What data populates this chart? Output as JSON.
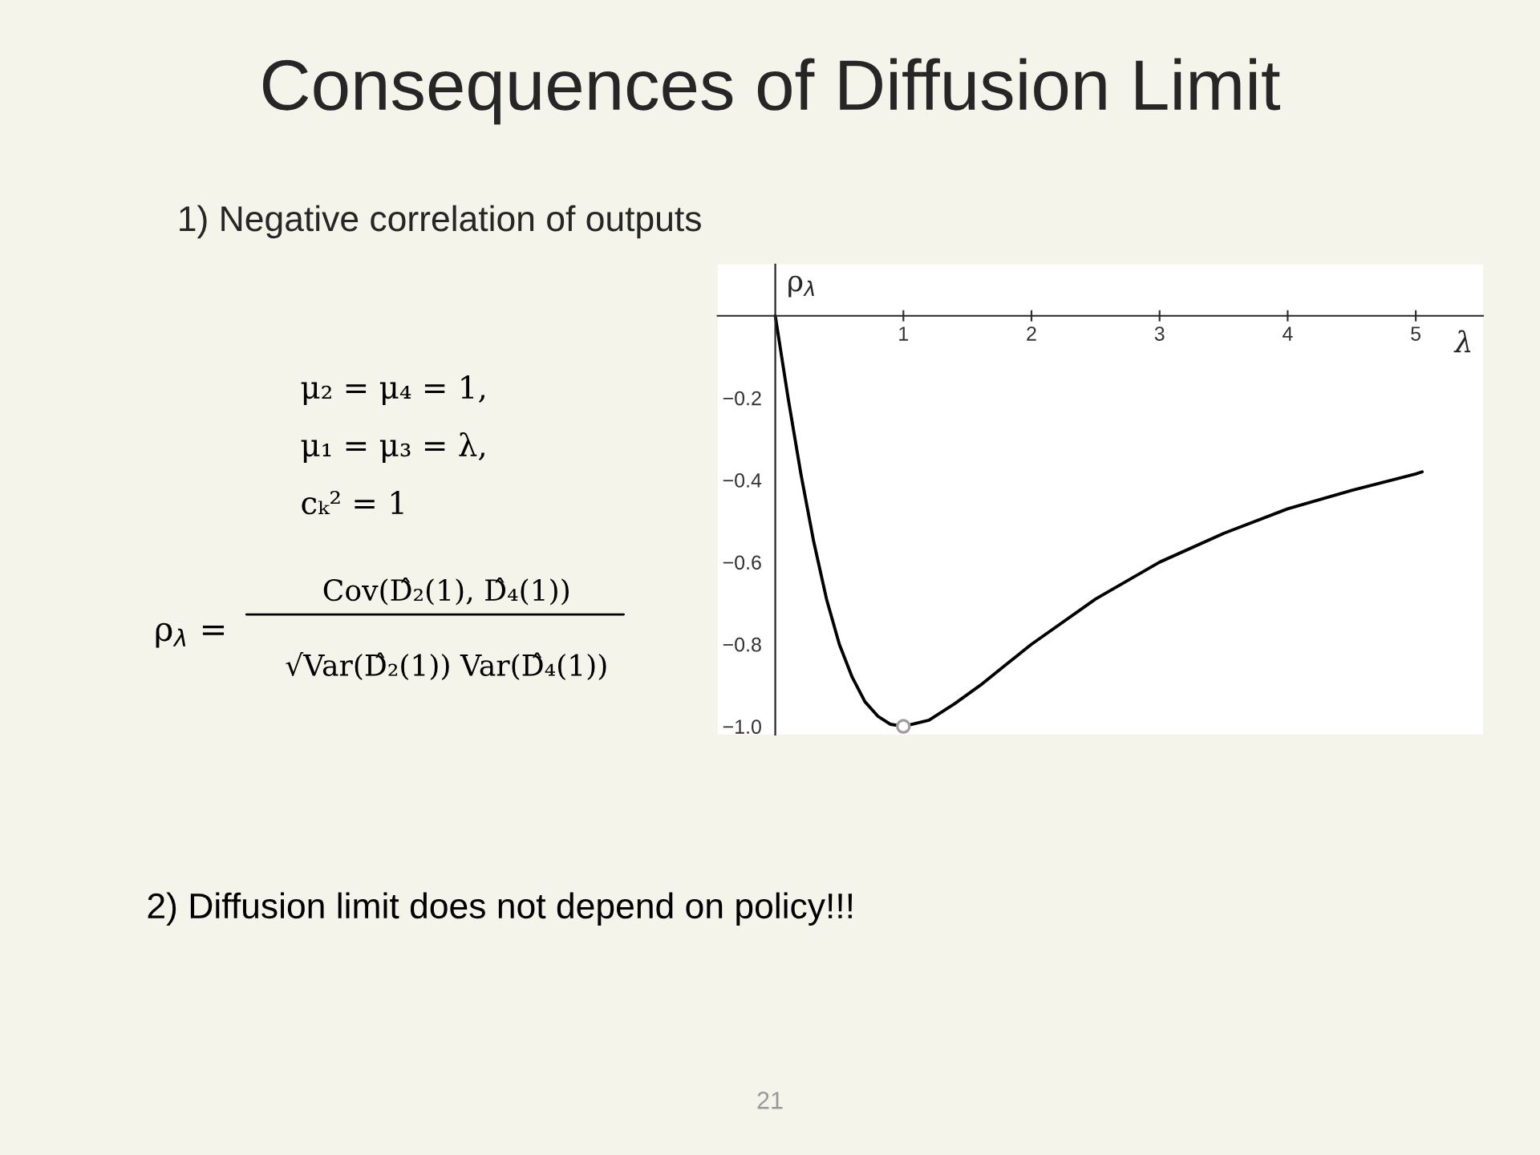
{
  "chart_data": {
    "type": "line",
    "title": "Consequences of Diffusion Limit",
    "subtitle": "1) Negative correlation of outputs",
    "xlabel": "λ",
    "ylabel": "ρ$_{λ}$",
    "annotations": [
      "μ₂ = μ₄ = 1,",
      "μ₁ = μ₃ = λ,",
      "cₖ² = 1",
      "ρ$_{λ}$ =",
      "Cov(D̂₂(1), D̂₄(1))",
      "√Var(D̂₂(1)) Var(D̂₄(1))",
      "2) Diffusion limit does not depend on policy!!!",
      "21"
    ],
    "xlim": [
      -0.45,
      5.525
    ],
    "ylim": [
      -1.02,
      0.125
    ],
    "xticks": [
      1,
      2,
      3,
      4,
      5
    ],
    "yticks": [
      {
        "value": -0.2,
        "label": "−0.2"
      },
      {
        "value": -0.4,
        "label": "−0.4"
      },
      {
        "value": -0.6,
        "label": "−0.6"
      },
      {
        "value": -0.8,
        "label": "−0.8"
      },
      {
        "value": -1.0,
        "label": "−1.0"
      }
    ],
    "grid": false,
    "legend": false,
    "series": [
      {
        "color": "#000000",
        "marker": "none",
        "x": [
          0,
          0.05,
          0.1,
          0.2,
          0.3,
          0.4,
          0.5,
          0.6,
          0.7,
          0.8,
          0.9,
          1,
          1.2,
          1.4,
          1.6,
          1.8,
          2,
          2.5,
          3,
          3.5,
          4,
          4.5,
          5,
          5.05
        ],
        "values": [
          0,
          -0.1,
          -0.2,
          -0.385,
          -0.55,
          -0.69,
          -0.8,
          -0.88,
          -0.94,
          -0.975,
          -0.995,
          -1,
          -0.985,
          -0.945,
          -0.9,
          -0.85,
          -0.8,
          -0.69,
          -0.6,
          -0.53,
          -0.47,
          -0.425,
          -0.385,
          -0.38
        ]
      },
      {
        "type": "scatter",
        "color": "#a0a0a0",
        "marker": "circle",
        "x": [
          1
        ],
        "values": [
          -1
        ]
      }
    ]
  }
}
